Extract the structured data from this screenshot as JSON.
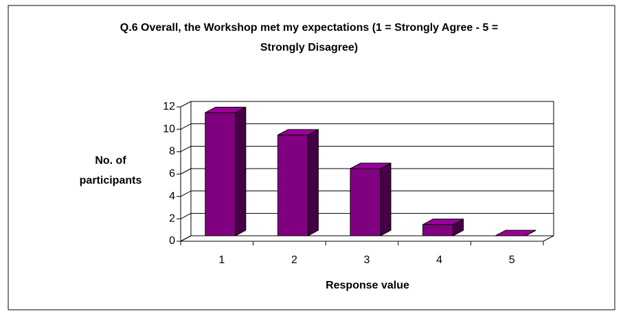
{
  "chart_data": {
    "type": "bar3d",
    "title": "Q.6 Overall, the Workshop met my expectations (1 = Strongly Agree - 5 = Strongly Disagree)",
    "x_label": "Response value",
    "y_label": "No. of participants",
    "categories": [
      "1",
      "2",
      "3",
      "4",
      "5"
    ],
    "values": [
      11,
      9,
      6,
      1,
      0
    ],
    "color": "#800080",
    "ylim": [
      0,
      12
    ],
    "yticks": [
      0,
      2,
      4,
      6,
      8,
      10,
      12
    ],
    "grid": true
  }
}
